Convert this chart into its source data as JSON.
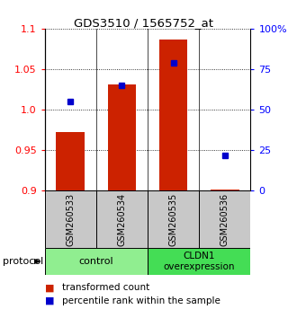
{
  "title": "GDS3510 / 1565752_at",
  "samples": [
    "GSM260533",
    "GSM260534",
    "GSM260535",
    "GSM260536"
  ],
  "red_values": [
    0.972,
    1.031,
    1.086,
    0.901
  ],
  "blue_percentiles": [
    55,
    65,
    79,
    22
  ],
  "ylim_left": [
    0.9,
    1.1
  ],
  "ylim_right": [
    0,
    100
  ],
  "yticks_left": [
    0.9,
    0.95,
    1.0,
    1.05,
    1.1
  ],
  "yticks_right": [
    0,
    25,
    50,
    75,
    100
  ],
  "ytick_labels_right": [
    "0",
    "25",
    "50",
    "75",
    "100%"
  ],
  "groups": [
    {
      "label": "control",
      "color": "#90EE90"
    },
    {
      "label": "CLDN1\noverexpression",
      "color": "#44DD55"
    }
  ],
  "bar_color": "#CC2200",
  "dot_color": "#0000CC",
  "bg_color": "#C8C8C8",
  "bar_width": 0.55,
  "protocol_label": "protocol",
  "legend_red": "transformed count",
  "legend_blue": "percentile rank within the sample"
}
